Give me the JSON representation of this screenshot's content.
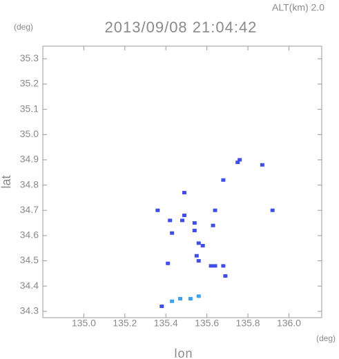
{
  "chart_data": {
    "type": "scatter",
    "title": "2013/09/08 21:04:42",
    "annotation": "ALT(km) 2.0",
    "y_unit": "(deg)",
    "x_unit": "(deg)",
    "xlabel": "lon",
    "ylabel": "lat",
    "xlim": [
      134.8,
      136.16
    ],
    "ylim": [
      34.275,
      35.35
    ],
    "xticks": [
      {
        "value": 135.0,
        "label": "135.0"
      },
      135.2,
      135.4,
      135.6,
      135.8,
      {
        "value": 136.0,
        "label": "136.0"
      }
    ],
    "yticks": [
      34.3,
      34.4,
      34.5,
      34.6,
      34.7,
      34.8,
      34.9,
      {
        "value": 35.0,
        "label": "35.0"
      },
      35.1,
      35.2,
      35.3
    ],
    "series": [
      {
        "color": "#3f4ee6",
        "x": [
          135.76,
          135.75,
          135.87,
          135.68,
          135.49,
          135.92,
          135.64,
          135.36,
          135.49,
          135.48,
          135.54,
          135.63,
          135.42,
          135.43,
          135.54,
          135.56,
          135.58,
          135.55,
          135.56,
          135.62,
          135.64,
          135.68,
          135.69,
          135.41,
          135.38
        ],
        "y": [
          34.9,
          34.89,
          34.88,
          34.82,
          34.77,
          34.7,
          34.7,
          34.7,
          34.68,
          34.66,
          34.65,
          34.64,
          34.66,
          34.61,
          34.62,
          34.57,
          34.56,
          34.52,
          34.5,
          34.48,
          34.48,
          34.48,
          34.44,
          34.49,
          34.32
        ]
      },
      {
        "color": "#3fa2ef",
        "x": [
          135.43,
          135.47,
          135.52,
          135.56
        ],
        "y": [
          34.34,
          34.35,
          34.35,
          34.36
        ]
      }
    ]
  }
}
